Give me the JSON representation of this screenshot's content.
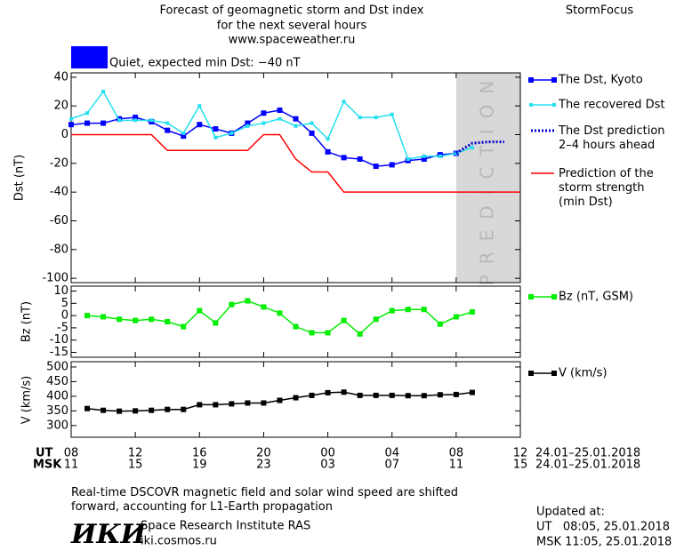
{
  "header": {
    "title_lines": [
      "Forecast of geomagnetic storm and Dst index",
      "for the next several hours",
      "www.spaceweather.ru"
    ],
    "brand": "StormFocus",
    "status": "Quiet, expected min Dst: −40 nT",
    "status_color": "#0000ff"
  },
  "chart_data": [
    {
      "type": "line",
      "ylabel": "Dst (nT)",
      "ylim": [
        -103,
        43
      ],
      "yticks": [
        40,
        20,
        0,
        -20,
        -40,
        -60,
        -80,
        -100
      ],
      "prediction_region": [
        24,
        28
      ],
      "prediction_label": "PREDICTION",
      "series": [
        {
          "name": "The Dst, Kyoto",
          "color": "#0000ff",
          "marker": "square",
          "x": [
            0,
            1,
            2,
            3,
            4,
            5,
            6,
            7,
            8,
            9,
            10,
            11,
            12,
            13,
            14,
            15,
            16,
            17,
            18,
            19,
            20,
            21,
            22,
            23,
            24
          ],
          "values": [
            7,
            8,
            8,
            11,
            12,
            9,
            3,
            -1,
            7,
            4,
            1,
            8,
            15,
            17,
            11,
            1,
            -12,
            -16,
            -17,
            -22,
            -21,
            -18,
            -17,
            -14,
            -13
          ]
        },
        {
          "name": "The recovered Dst",
          "color": "#22e0f0",
          "marker": "small-square",
          "x": [
            0,
            1,
            2,
            3,
            4,
            5,
            6,
            7,
            8,
            9,
            10,
            11,
            12,
            13,
            14,
            15,
            16,
            17,
            18,
            19,
            20,
            21,
            22,
            23,
            24,
            25
          ],
          "values": [
            11,
            15,
            30,
            10,
            10,
            10,
            8,
            1,
            20,
            -2,
            1,
            6,
            8,
            11,
            6,
            8,
            -3,
            23,
            12,
            12,
            14,
            -17,
            -15,
            -15,
            -13,
            -9
          ]
        },
        {
          "name": "The Dst prediction\n2–4 hours ahead",
          "color": "#0000cc",
          "marker": "dotted",
          "x": [
            24,
            25,
            26,
            27
          ],
          "values": [
            -13,
            -6,
            -5,
            -5
          ]
        },
        {
          "name": "Prediction of the\nstorm strength\n(min Dst)",
          "color": "#ff0000",
          "marker": "none",
          "x": [
            0,
            1,
            2,
            3,
            4,
            5,
            6,
            7,
            8,
            9,
            10,
            11,
            12,
            13,
            14,
            15,
            16,
            17,
            18,
            19,
            20,
            21,
            22,
            23,
            24,
            25,
            26,
            27,
            28
          ],
          "values": [
            0,
            0,
            0,
            0,
            0,
            0,
            -11,
            -11,
            -11,
            -11,
            -11,
            -11,
            0,
            0,
            -17,
            -26,
            -26,
            -40,
            -40,
            -40,
            -40,
            -40,
            -40,
            -40,
            -40,
            -40,
            -40,
            -40,
            -40
          ]
        }
      ]
    },
    {
      "type": "line",
      "ylabel": "Bz (nT)",
      "ylim": [
        -17,
        12
      ],
      "yticks": [
        10,
        5,
        0,
        -5,
        -10,
        -15
      ],
      "series": [
        {
          "name": "Bz (nT, GSM)",
          "color": "#00ee00",
          "marker": "square",
          "x": [
            1,
            2,
            3,
            4,
            5,
            6,
            7,
            8,
            9,
            10,
            11,
            12,
            13,
            14,
            15,
            16,
            17,
            18,
            19,
            20,
            21,
            22,
            23,
            24,
            25
          ],
          "values": [
            0,
            -0.5,
            -1.5,
            -2,
            -1.5,
            -2.5,
            -4.5,
            2,
            -3,
            4.5,
            6,
            3.5,
            1,
            -4.5,
            -7,
            -7,
            -2,
            -7.5,
            -1.5,
            2,
            2.5,
            2.5,
            -3.5,
            -0.5,
            1.5
          ]
        }
      ]
    },
    {
      "type": "line",
      "ylabel": "V (km/s)",
      "ylim": [
        260,
        518
      ],
      "yticks": [
        500,
        450,
        400,
        350,
        300
      ],
      "xlim": [
        0,
        28
      ],
      "xticks": [
        {
          "value": 0,
          "label": "08"
        },
        {
          "value": 4,
          "label": "12"
        },
        {
          "value": 8,
          "label": "16"
        },
        {
          "value": 12,
          "label": "20"
        },
        {
          "value": 16,
          "label": "00"
        },
        {
          "value": 20,
          "label": "04"
        },
        {
          "value": 24,
          "label": "08"
        },
        {
          "value": 28,
          "label": "12"
        }
      ],
      "xticks_msk": [
        {
          "value": 0,
          "label": "11"
        },
        {
          "value": 4,
          "label": "15"
        },
        {
          "value": 8,
          "label": "19"
        },
        {
          "value": 12,
          "label": "23"
        },
        {
          "value": 16,
          "label": "03"
        },
        {
          "value": 20,
          "label": "07"
        },
        {
          "value": 24,
          "label": "11"
        },
        {
          "value": 28,
          "label": "15"
        }
      ],
      "x_label_ut": "UT",
      "x_label_msk": "MSK",
      "date_range_ut": "24.01–25.01.2018",
      "date_range_msk": "24.01–25.01.2018",
      "series": [
        {
          "name": "V (km/s)",
          "color": "#000000",
          "marker": "square",
          "x": [
            1,
            2,
            3,
            4,
            5,
            6,
            7,
            8,
            9,
            10,
            11,
            12,
            13,
            14,
            15,
            16,
            17,
            18,
            19,
            20,
            21,
            22,
            23,
            24,
            25
          ],
          "values": [
            358,
            352,
            349,
            350,
            352,
            355,
            355,
            371,
            371,
            374,
            377,
            377,
            386,
            395,
            403,
            412,
            414,
            403,
            403,
            403,
            402,
            402,
            405,
            406,
            413
          ]
        }
      ]
    }
  ],
  "footer": {
    "note": "Real-time DSCOVR magnetic field and solar wind speed are shifted\nforward, accounting for L1-Earth propagation",
    "logo": "ИКИ",
    "institute": "Space Research Institute RAS",
    "url": "iki.cosmos.ru",
    "updated_label": "Updated at:",
    "updated_ut": "UT   08:05, 25.01.2018",
    "updated_msk": "MSK 11:05, 25.01.2018"
  }
}
